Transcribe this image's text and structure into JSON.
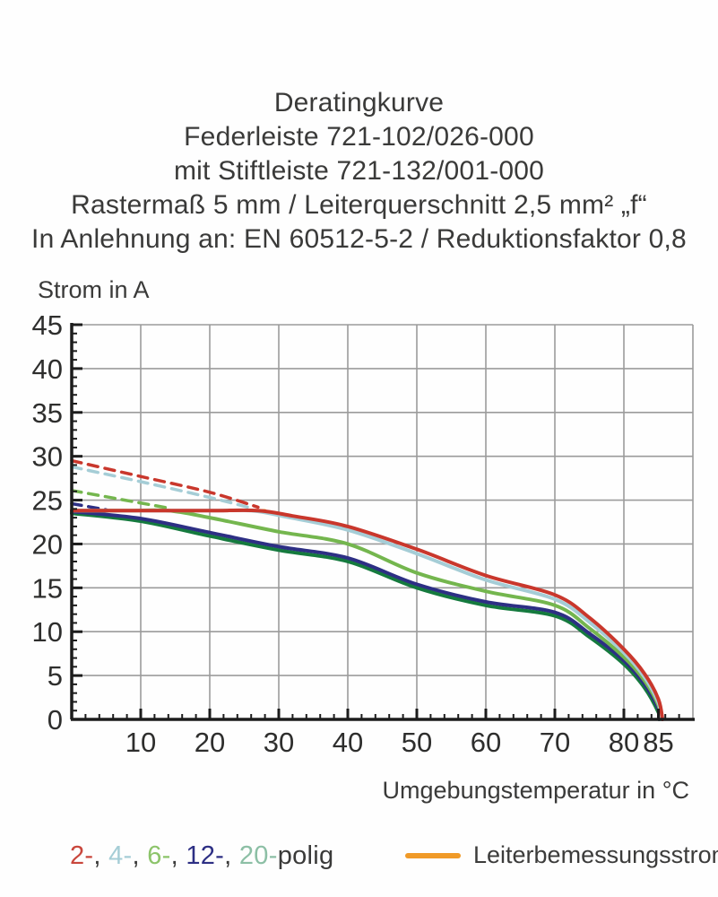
{
  "title": {
    "line1": "Deratingkurve",
    "line2": "Federleiste 721-102/026-000",
    "line3": "mit Stiftleiste 721-132/001-000",
    "line4": "Rastermaß 5 mm / Leiterquerschnitt 2,5 mm² „f“",
    "line5": "In Anlehnung an: EN 60512-5-2 / Reduktionsfaktor 0,8"
  },
  "chart_data": {
    "type": "line",
    "ylabel": "Strom in A",
    "xlabel": "Umgebungstemperatur in °C",
    "xlim": [
      0,
      90
    ],
    "ylim": [
      0,
      45
    ],
    "x_major_ticks": [
      10,
      20,
      30,
      40,
      50,
      60,
      70,
      80,
      85
    ],
    "x_gridlines": [
      10,
      20,
      30,
      40,
      50,
      60,
      70,
      80,
      90
    ],
    "y_major_ticks": [
      0,
      5,
      10,
      15,
      20,
      25,
      30,
      35,
      40,
      45
    ],
    "x_minor_step": 2,
    "y_minor_step": 1,
    "grid": true,
    "colors": {
      "grid": "#9b9b9b",
      "axis": "#1c1c1c",
      "tick_text": "#2e2e2d"
    },
    "series": [
      {
        "id": "rated-current-line",
        "name": "Leiterbemessungsstrom",
        "style": "solid",
        "color": "#e9a93d",
        "width": 3.5,
        "points": [
          [
            0,
            23.8
          ],
          [
            28,
            23.8
          ]
        ]
      },
      {
        "id": "curve-2-polig-dashed",
        "name": "2-polig (gestrichelt)",
        "style": "dashed",
        "color": "#c9372c",
        "width": 3.5,
        "points": [
          [
            0,
            29.5
          ],
          [
            10,
            27.7
          ],
          [
            20,
            25.9
          ],
          [
            27,
            24.2
          ]
        ]
      },
      {
        "id": "curve-4-polig-dashed",
        "name": "4-polig (gestrichelt)",
        "style": "dashed",
        "color": "#a5cdd6",
        "width": 3.5,
        "points": [
          [
            0,
            28.8
          ],
          [
            10,
            27.1
          ],
          [
            20,
            25.3
          ],
          [
            26,
            24.1
          ]
        ]
      },
      {
        "id": "curve-6-polig-dashed",
        "name": "6-polig (gestrichelt)",
        "style": "dashed",
        "color": "#74b64e",
        "width": 3.5,
        "points": [
          [
            0,
            26.1
          ],
          [
            7,
            25.1
          ],
          [
            14,
            24.1
          ]
        ]
      },
      {
        "id": "curve-12-polig-dashed",
        "name": "12-polig (gestrichelt)",
        "style": "dashed",
        "color": "#2d2f84",
        "width": 3.5,
        "points": [
          [
            0,
            24.6
          ],
          [
            5,
            23.9
          ]
        ]
      },
      {
        "id": "curve-20-polig",
        "name": "20-polig",
        "style": "solid",
        "color": "#157a3e",
        "width": 4,
        "points": [
          [
            0,
            23.5
          ],
          [
            10,
            22.6
          ],
          [
            20,
            20.9
          ],
          [
            30,
            19.3
          ],
          [
            40,
            18.0
          ],
          [
            50,
            15.0
          ],
          [
            60,
            13.0
          ],
          [
            70,
            11.8
          ],
          [
            75,
            9.4
          ],
          [
            80,
            6.3
          ],
          [
            83,
            3.6
          ],
          [
            85,
            0.8
          ],
          [
            85.1,
            0
          ]
        ]
      },
      {
        "id": "curve-12-polig",
        "name": "12-polig",
        "style": "solid",
        "color": "#2d2f84",
        "width": 4,
        "points": [
          [
            0,
            23.7
          ],
          [
            10,
            22.9
          ],
          [
            20,
            21.3
          ],
          [
            30,
            19.7
          ],
          [
            40,
            18.4
          ],
          [
            50,
            15.4
          ],
          [
            60,
            13.4
          ],
          [
            70,
            12.2
          ],
          [
            75,
            9.8
          ],
          [
            80,
            6.7
          ],
          [
            83,
            4.0
          ],
          [
            85,
            1.2
          ],
          [
            85.2,
            0
          ]
        ]
      },
      {
        "id": "curve-6-polig",
        "name": "6-polig",
        "style": "solid",
        "color": "#74b64e",
        "width": 4,
        "points": [
          [
            0,
            23.8
          ],
          [
            8,
            23.8
          ],
          [
            14,
            23.8
          ],
          [
            20,
            23.0
          ],
          [
            30,
            21.4
          ],
          [
            40,
            20.0
          ],
          [
            50,
            16.7
          ],
          [
            60,
            14.6
          ],
          [
            70,
            13.0
          ],
          [
            75,
            10.4
          ],
          [
            80,
            7.1
          ],
          [
            83,
            4.4
          ],
          [
            85,
            1.6
          ],
          [
            85.3,
            0
          ]
        ]
      },
      {
        "id": "curve-4-polig",
        "name": "4-polig",
        "style": "solid",
        "color": "#a5cdd6",
        "width": 4,
        "points": [
          [
            0,
            23.8
          ],
          [
            10,
            23.8
          ],
          [
            20,
            23.8
          ],
          [
            26,
            23.8
          ],
          [
            31,
            23.1
          ],
          [
            40,
            21.6
          ],
          [
            50,
            18.9
          ],
          [
            60,
            15.9
          ],
          [
            70,
            13.7
          ],
          [
            75,
            11.1
          ],
          [
            80,
            7.6
          ],
          [
            83,
            4.8
          ],
          [
            85,
            1.9
          ],
          [
            85.4,
            0
          ]
        ]
      },
      {
        "id": "curve-2-polig",
        "name": "2-polig",
        "style": "solid",
        "color": "#c9372c",
        "width": 4,
        "points": [
          [
            0,
            23.8
          ],
          [
            10,
            23.8
          ],
          [
            20,
            23.8
          ],
          [
            27,
            23.8
          ],
          [
            32,
            23.2
          ],
          [
            40,
            22.0
          ],
          [
            50,
            19.4
          ],
          [
            60,
            16.4
          ],
          [
            70,
            14.2
          ],
          [
            75,
            11.6
          ],
          [
            80,
            8.0
          ],
          [
            83,
            5.2
          ],
          [
            85,
            2.3
          ],
          [
            85.6,
            0
          ]
        ]
      }
    ]
  },
  "legend": {
    "poles": {
      "items": [
        {
          "text": "2-",
          "color": "#c9463c"
        },
        {
          "text": "4-",
          "color": "#a5cdd6"
        },
        {
          "text": "6-",
          "color": "#8cc46a"
        },
        {
          "text": "12-",
          "color": "#2d2f84"
        },
        {
          "text": "20-",
          "color": "#8cbfa5"
        }
      ],
      "separator": ", ",
      "suffix": "polig",
      "suffix_color": "#3a3a39"
    },
    "rated": {
      "label": "Leiterbemessungsstrom",
      "color": "#f09a28"
    }
  }
}
